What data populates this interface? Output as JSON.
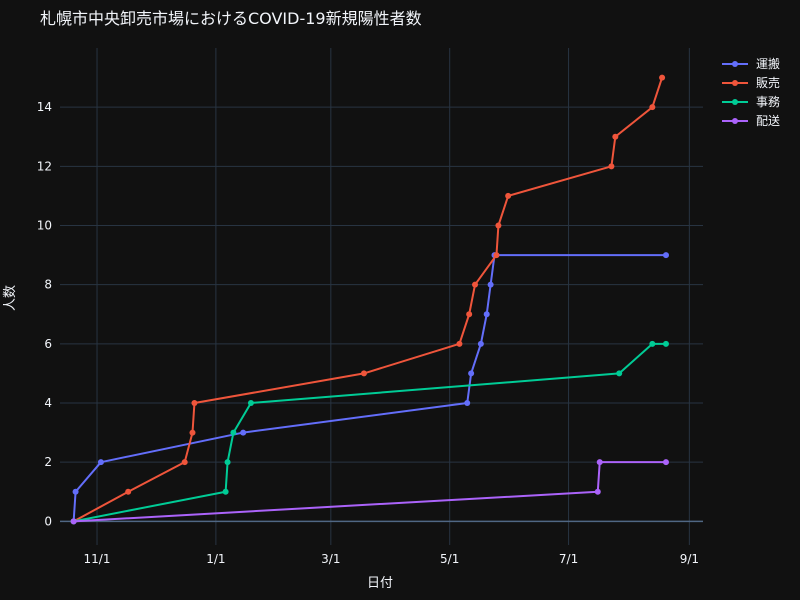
{
  "chart_data": {
    "type": "line",
    "title": "札幌市中央卸売市場におけるCOVID-19新規陽性者数",
    "xlabel": "日付",
    "ylabel": "人数",
    "x_ticks": [
      "2020-11-01",
      "2021-01-01",
      "2021-03-01",
      "2021-05-01",
      "2021-07-01",
      "2021-09-01"
    ],
    "x_tick_labels": [
      "11/1",
      "1/1",
      "3/1",
      "5/1",
      "7/1",
      "9/1"
    ],
    "xlim": [
      "2020-10-13",
      "2021-09-08"
    ],
    "ylim": [
      -0.8,
      16
    ],
    "y_ticks": [
      0,
      2,
      4,
      6,
      8,
      10,
      12,
      14
    ],
    "grid": true,
    "legend_position": "top-right",
    "series": [
      {
        "name": "運搬",
        "color": "#636efa",
        "points": [
          [
            "2020-10-20",
            0
          ],
          [
            "2020-10-21",
            1
          ],
          [
            "2020-11-03",
            2
          ],
          [
            "2021-01-15",
            3
          ],
          [
            "2021-05-10",
            4
          ],
          [
            "2021-05-12",
            5
          ],
          [
            "2021-05-17",
            6
          ],
          [
            "2021-05-20",
            7
          ],
          [
            "2021-05-22",
            8
          ],
          [
            "2021-05-24",
            9
          ],
          [
            "2021-08-20",
            9
          ]
        ]
      },
      {
        "name": "販売",
        "color": "#ef553b",
        "points": [
          [
            "2020-10-20",
            0
          ],
          [
            "2020-11-17",
            1
          ],
          [
            "2020-12-16",
            2
          ],
          [
            "2020-12-20",
            3
          ],
          [
            "2020-12-21",
            4
          ],
          [
            "2021-03-18",
            5
          ],
          [
            "2021-05-06",
            6
          ],
          [
            "2021-05-11",
            7
          ],
          [
            "2021-05-14",
            8
          ],
          [
            "2021-05-25",
            9
          ],
          [
            "2021-05-26",
            10
          ],
          [
            "2021-05-31",
            11
          ],
          [
            "2021-07-23",
            12
          ],
          [
            "2021-07-25",
            13
          ],
          [
            "2021-08-13",
            14
          ],
          [
            "2021-08-18",
            15
          ]
        ]
      },
      {
        "name": "事務",
        "color": "#00cc96",
        "points": [
          [
            "2020-10-20",
            0
          ],
          [
            "2021-01-06",
            1
          ],
          [
            "2021-01-07",
            2
          ],
          [
            "2021-01-10",
            3
          ],
          [
            "2021-01-19",
            4
          ],
          [
            "2021-07-27",
            5
          ],
          [
            "2021-08-13",
            6
          ],
          [
            "2021-08-20",
            6
          ]
        ]
      },
      {
        "name": "配送",
        "color": "#ab63fa",
        "points": [
          [
            "2020-10-20",
            0
          ],
          [
            "2021-07-16",
            1
          ],
          [
            "2021-07-17",
            2
          ],
          [
            "2021-08-20",
            2
          ]
        ]
      }
    ]
  }
}
